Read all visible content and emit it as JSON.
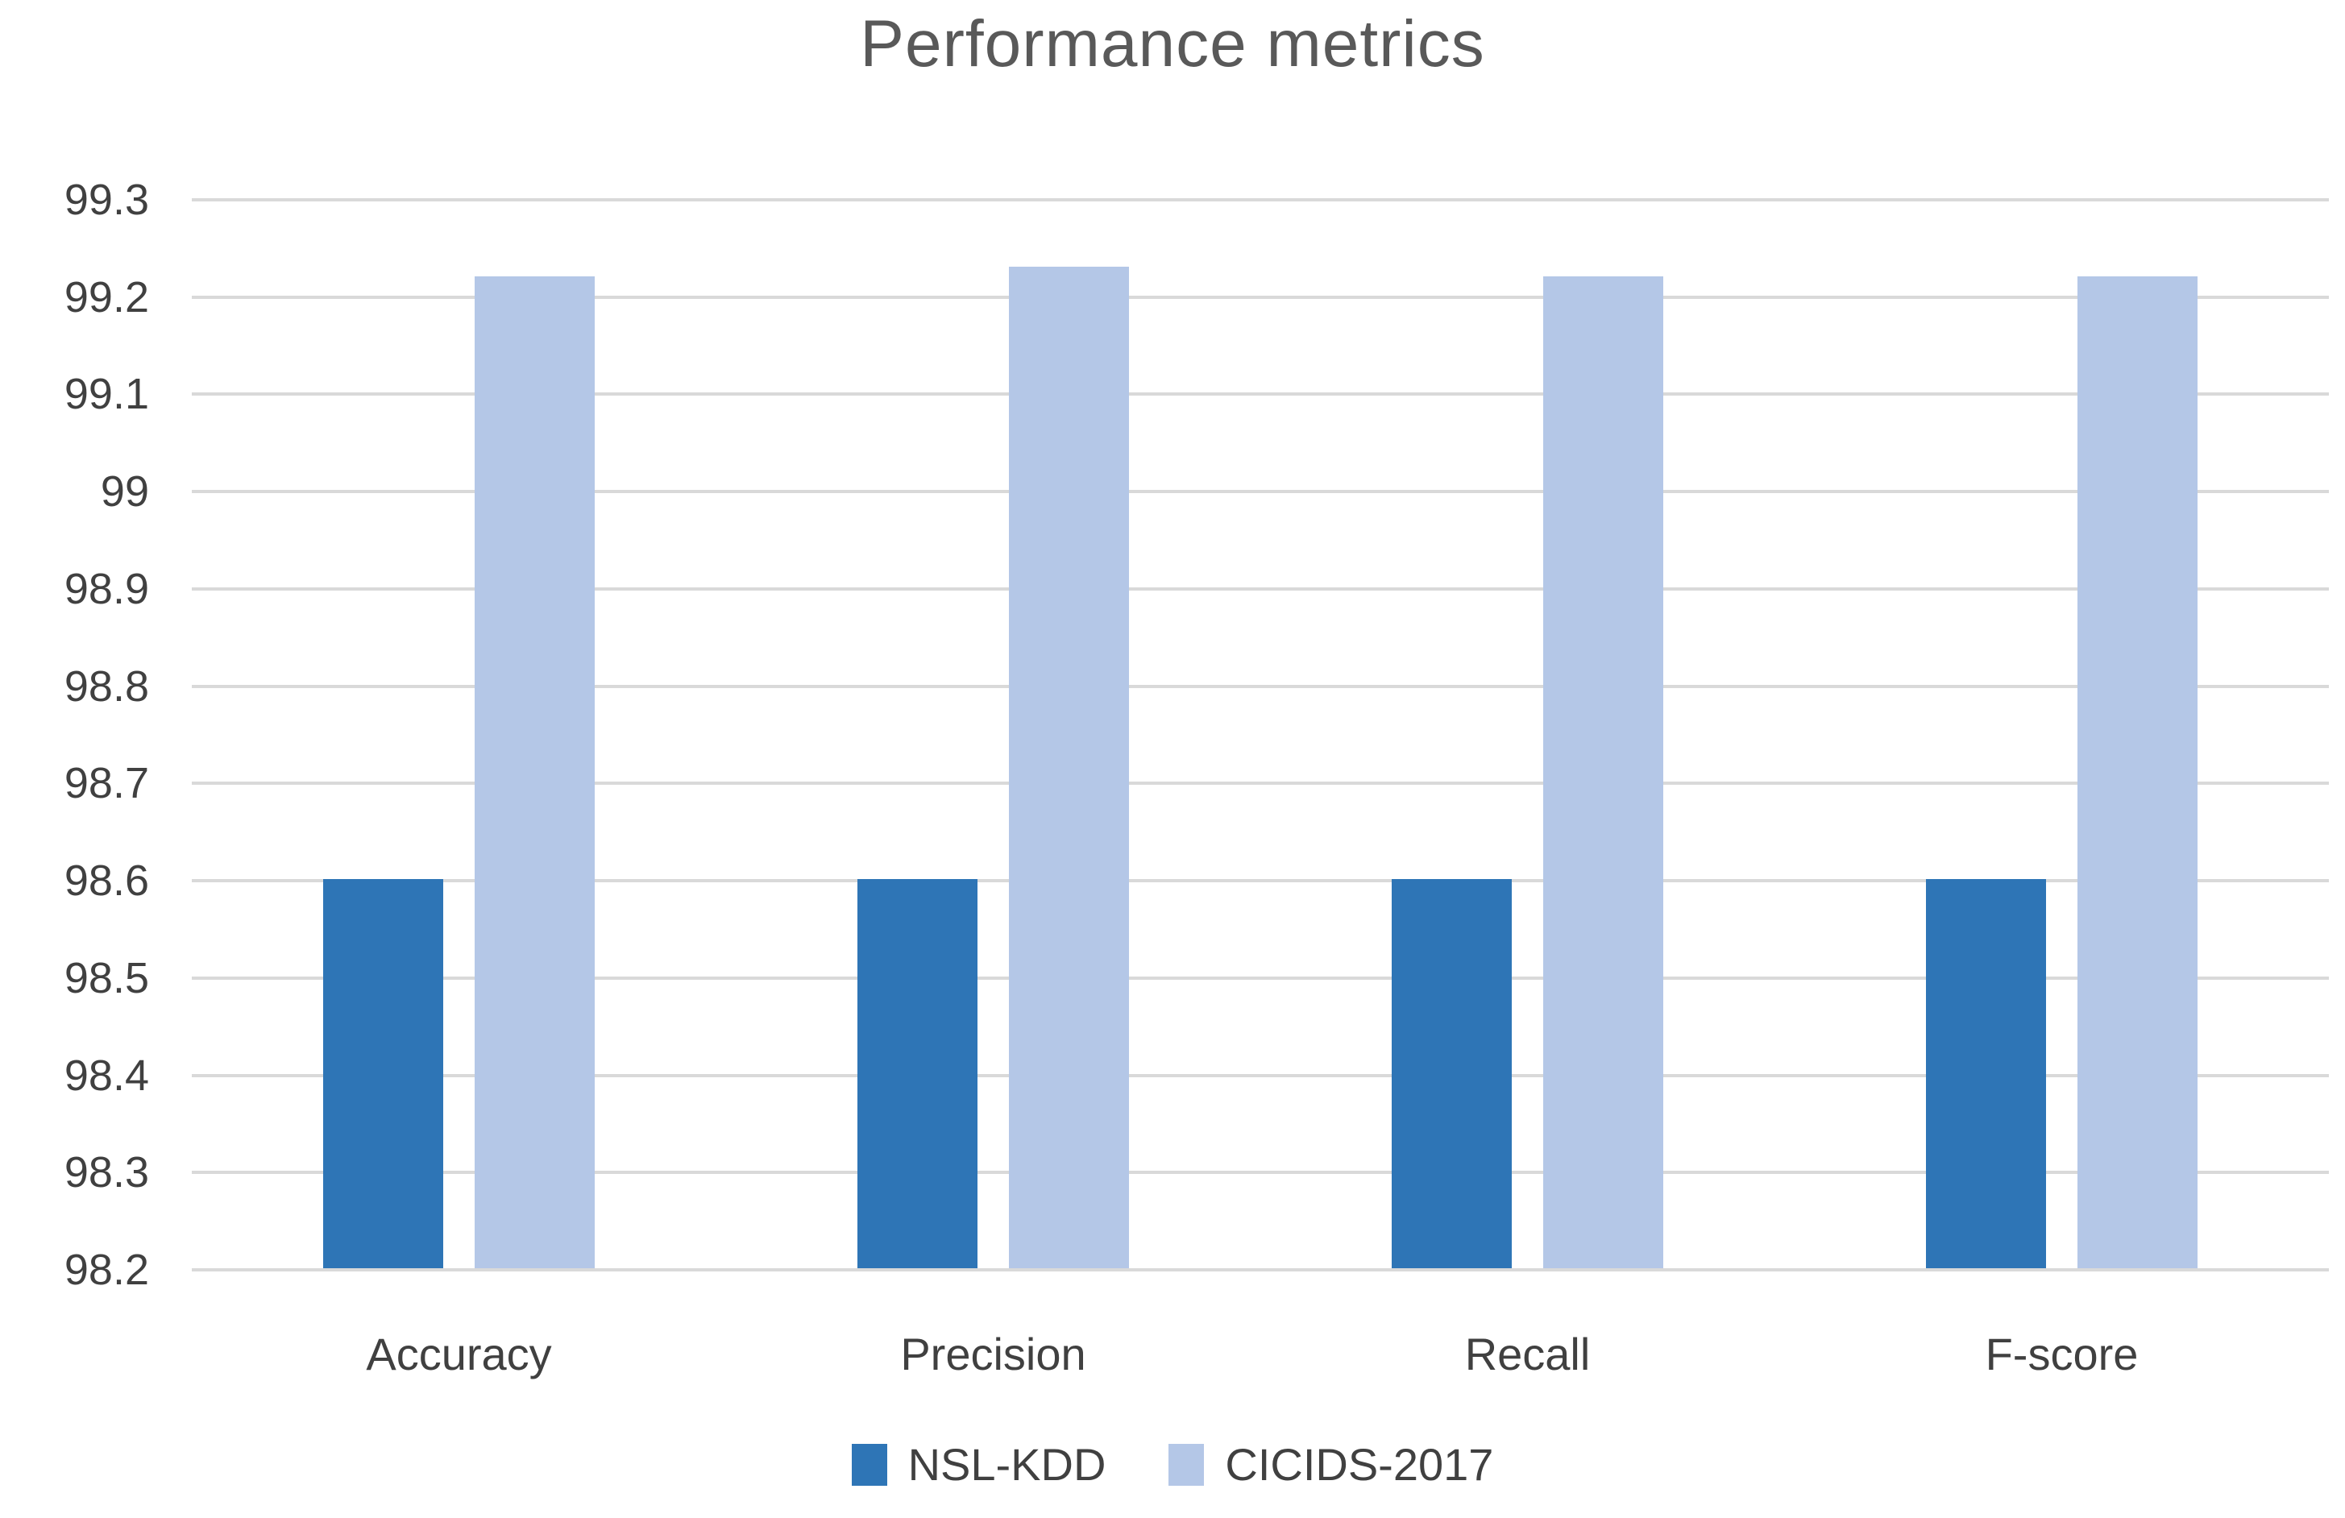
{
  "chart_data": {
    "type": "bar",
    "title": "Performance metrics",
    "xlabel": "",
    "ylabel": "",
    "categories": [
      "Accuracy",
      "Precision",
      "Recall",
      "F-score"
    ],
    "series": [
      {
        "name": "NSL-KDD",
        "color": "#2E75B6",
        "values": [
          98.6,
          98.6,
          98.6,
          98.6
        ]
      },
      {
        "name": "CICIDS-2017",
        "color": "#B4C7E7",
        "values": [
          99.22,
          99.23,
          99.22,
          99.22
        ]
      }
    ],
    "ylim": [
      98.2,
      99.3
    ],
    "ytick_step": 0.1,
    "ytick_labels": [
      "99.3",
      "99.2",
      "99.1",
      "99",
      "98.9",
      "98.8",
      "98.7",
      "98.6",
      "98.5",
      "98.4",
      "98.3",
      "98.2"
    ],
    "grid": true,
    "legend_position": "bottom"
  },
  "colors": {
    "background": "#FFFFFF",
    "grid": "#D9D9D9",
    "title_text": "#595959",
    "axis_text": "#404040"
  }
}
